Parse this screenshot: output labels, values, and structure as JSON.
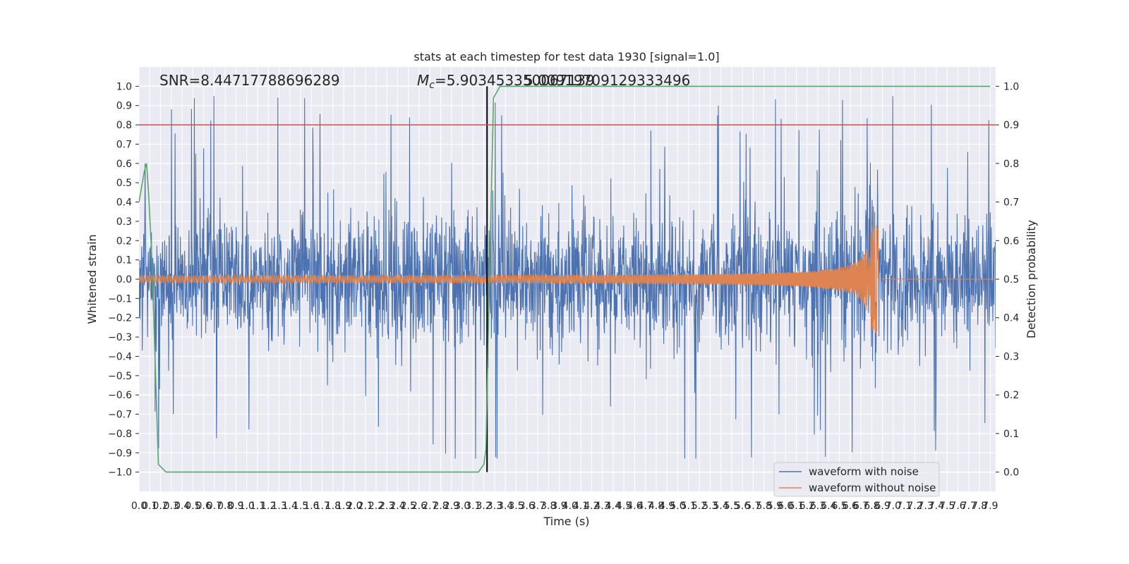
{
  "chart_data": {
    "type": "line",
    "title": "stats at each timestep for test data 1930 [signal=1.0]",
    "xlabel": "Time (s)",
    "ylabel_left": "Whitened strain",
    "ylabel_right": "Detection probability",
    "xlim": [
      0.0,
      7.95
    ],
    "ylim_left": [
      -1.1,
      1.1
    ],
    "ylim_right": [
      -0.05,
      1.05
    ],
    "x_ticks": [
      0.0,
      0.1,
      0.2,
      0.3,
      0.4,
      0.5,
      0.6,
      0.7,
      0.8,
      0.9,
      1.0,
      1.1,
      1.2,
      1.3,
      1.4,
      1.5,
      1.6,
      1.7,
      1.8,
      1.9,
      2.0,
      2.1,
      2.2,
      2.3,
      2.4,
      2.5,
      2.6,
      2.7,
      2.8,
      2.9,
      3.0,
      3.1,
      3.2,
      3.3,
      3.4,
      3.5,
      3.6,
      3.7,
      3.8,
      3.9,
      4.0,
      4.1,
      4.2,
      4.3,
      4.4,
      4.5,
      4.6,
      4.7,
      4.8,
      4.9,
      5.0,
      5.1,
      5.2,
      5.3,
      5.4,
      5.5,
      5.6,
      5.7,
      5.8,
      5.9,
      6.0,
      6.1,
      6.2,
      6.3,
      6.4,
      6.5,
      6.6,
      6.7,
      6.8,
      6.9,
      7.0,
      7.1,
      7.2,
      7.3,
      7.4,
      7.5,
      7.6,
      7.7,
      7.8,
      7.9
    ],
    "y_ticks_left": [
      -1.0,
      -0.9,
      -0.8,
      -0.7,
      -0.6,
      -0.5,
      -0.4,
      -0.3,
      -0.2,
      -0.1,
      0.0,
      0.1,
      0.2,
      0.3,
      0.4,
      0.5,
      0.6,
      0.7,
      0.8,
      0.9,
      1.0
    ],
    "y_ticks_right": [
      0.0,
      0.1,
      0.2,
      0.3,
      0.4,
      0.5,
      0.6,
      0.7,
      0.8,
      0.9,
      1.0
    ],
    "annotations": {
      "snr": "SNR=8.44717788696289",
      "mc_symbol": "M",
      "mc_sub": "c",
      "mc_value": "=5.903453350067139",
      "overlap_value": "5.00919709129333496"
    },
    "threshold_line": {
      "axis": "right",
      "y": 0.9,
      "color": "#c44e52"
    },
    "merger_line": {
      "x": 3.23,
      "color": "#000000"
    },
    "series": [
      {
        "name": "waveform with noise",
        "color": "#4c72b0",
        "axis": "left",
        "description": "noise envelope approx ±0.4 with spikes up to ±1.0",
        "envelope": {
          "pos_max": 0.99,
          "neg_min": -0.93
        }
      },
      {
        "name": "waveform without noise",
        "color": "#dd8452",
        "axis": "left",
        "chirp": {
          "amp_start": 0.015,
          "amp_peak": 0.28,
          "peak_time": 6.85,
          "start_time": 0.0
        }
      },
      {
        "name": "detection probability",
        "color": "#55a868",
        "axis": "right",
        "x": [
          0.0,
          0.05,
          0.07,
          0.09,
          0.12,
          0.18,
          0.25,
          3.15,
          3.2,
          3.22,
          3.26,
          3.29,
          3.35,
          7.9
        ],
        "y": [
          0.7,
          0.78,
          0.8,
          0.72,
          0.55,
          0.02,
          0.0,
          0.0,
          0.02,
          0.06,
          0.6,
          0.97,
          1.0,
          1.0
        ]
      }
    ],
    "legend": {
      "placement": "lower-right",
      "entries": [
        "waveform with noise",
        "waveform without noise"
      ]
    }
  }
}
